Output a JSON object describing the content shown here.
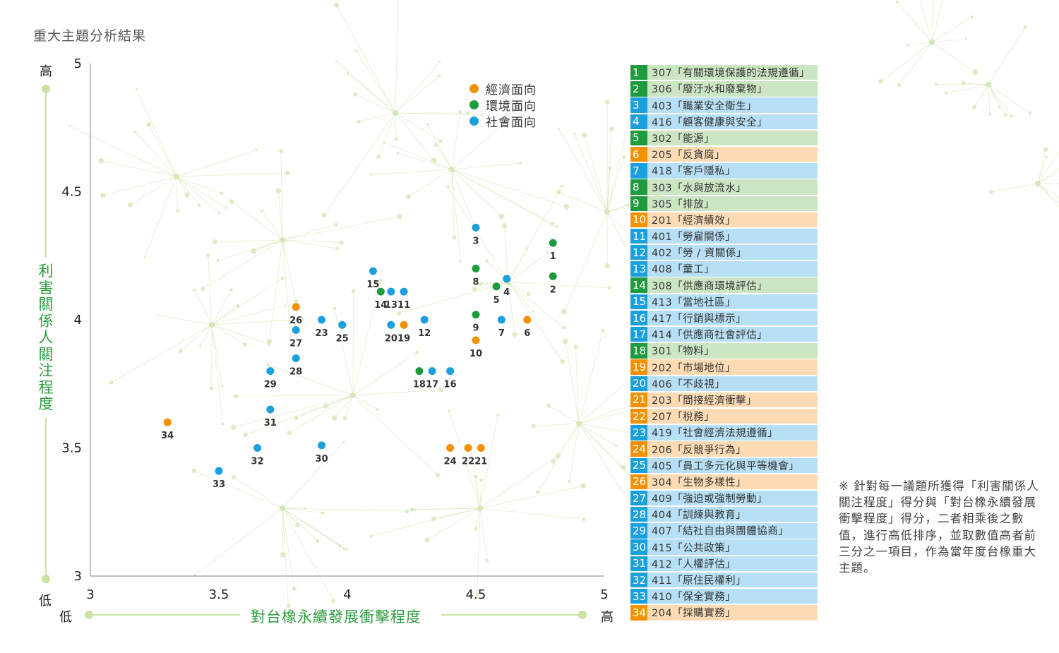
{
  "page_title": "重大主題分析結果",
  "axis_words": {
    "y_high": "高",
    "y_low": "低",
    "x_low": "低",
    "x_high": "高"
  },
  "colors": {
    "economic": "#f39200",
    "environmental": "#1e9b3c",
    "social": "#1aa0dc",
    "economic_row": "#fddcb5",
    "environmental_row": "#cce6c4",
    "social_row": "#b7dff5",
    "axis_title": "#2e9e3e",
    "guide": "#c9e3a3",
    "background_network": "#d6e8b8"
  },
  "legend": [
    {
      "label": "經濟面向",
      "category": "economic"
    },
    {
      "label": "環境面向",
      "category": "environmental"
    },
    {
      "label": "社會面向",
      "category": "social"
    }
  ],
  "chart_data": {
    "type": "scatter",
    "xlabel": "對台橡永續發展衝擊程度",
    "ylabel": "利害關係人關注程度",
    "xlim": [
      3,
      5
    ],
    "ylim": [
      3,
      5
    ],
    "x_ticks": [
      "3",
      "3.5",
      "4",
      "4.5",
      "5"
    ],
    "y_ticks": [
      "3",
      "3.5",
      "4",
      "4.5",
      "5"
    ],
    "grid": false,
    "legend_position": "top-center",
    "points": [
      {
        "id": "1",
        "x": 4.8,
        "y": 4.3,
        "category": "environmental"
      },
      {
        "id": "2",
        "x": 4.8,
        "y": 4.17,
        "category": "environmental"
      },
      {
        "id": "3",
        "x": 4.5,
        "y": 4.36,
        "category": "social"
      },
      {
        "id": "4",
        "x": 4.62,
        "y": 4.16,
        "category": "social"
      },
      {
        "id": "5",
        "x": 4.58,
        "y": 4.13,
        "category": "environmental"
      },
      {
        "id": "6",
        "x": 4.7,
        "y": 4.0,
        "category": "economic"
      },
      {
        "id": "7",
        "x": 4.6,
        "y": 4.0,
        "category": "social"
      },
      {
        "id": "8",
        "x": 4.5,
        "y": 4.2,
        "category": "environmental"
      },
      {
        "id": "9",
        "x": 4.5,
        "y": 4.02,
        "category": "environmental"
      },
      {
        "id": "10",
        "x": 4.5,
        "y": 3.92,
        "category": "economic"
      },
      {
        "id": "11",
        "x": 4.22,
        "y": 4.11,
        "category": "social"
      },
      {
        "id": "12",
        "x": 4.3,
        "y": 4.0,
        "category": "social"
      },
      {
        "id": "13",
        "x": 4.17,
        "y": 4.11,
        "category": "social"
      },
      {
        "id": "14",
        "x": 4.13,
        "y": 4.11,
        "category": "environmental"
      },
      {
        "id": "15",
        "x": 4.1,
        "y": 4.19,
        "category": "social"
      },
      {
        "id": "16",
        "x": 4.4,
        "y": 3.8,
        "category": "social"
      },
      {
        "id": "17",
        "x": 4.33,
        "y": 3.8,
        "category": "social"
      },
      {
        "id": "18",
        "x": 4.28,
        "y": 3.8,
        "category": "environmental"
      },
      {
        "id": "19",
        "x": 4.22,
        "y": 3.98,
        "category": "economic"
      },
      {
        "id": "20",
        "x": 4.17,
        "y": 3.98,
        "category": "social"
      },
      {
        "id": "21",
        "x": 4.52,
        "y": 3.5,
        "category": "economic"
      },
      {
        "id": "22",
        "x": 4.47,
        "y": 3.5,
        "category": "economic"
      },
      {
        "id": "23",
        "x": 3.9,
        "y": 4.0,
        "category": "social"
      },
      {
        "id": "24",
        "x": 4.4,
        "y": 3.5,
        "category": "economic"
      },
      {
        "id": "25",
        "x": 3.98,
        "y": 3.98,
        "category": "social"
      },
      {
        "id": "26",
        "x": 3.8,
        "y": 4.05,
        "category": "economic"
      },
      {
        "id": "27",
        "x": 3.8,
        "y": 3.96,
        "category": "social"
      },
      {
        "id": "28",
        "x": 3.8,
        "y": 3.85,
        "category": "social"
      },
      {
        "id": "29",
        "x": 3.7,
        "y": 3.8,
        "category": "social"
      },
      {
        "id": "30",
        "x": 3.9,
        "y": 3.51,
        "category": "social"
      },
      {
        "id": "31",
        "x": 3.7,
        "y": 3.65,
        "category": "social"
      },
      {
        "id": "32",
        "x": 3.65,
        "y": 3.5,
        "category": "social"
      },
      {
        "id": "33",
        "x": 3.5,
        "y": 3.41,
        "category": "social"
      },
      {
        "id": "34",
        "x": 3.3,
        "y": 3.6,
        "category": "economic"
      }
    ]
  },
  "topics": [
    {
      "num": "1",
      "text": "307「有關環境保護的法規遵循」",
      "category": "environmental"
    },
    {
      "num": "2",
      "text": "306「廢汙水和廢棄物」",
      "category": "environmental"
    },
    {
      "num": "3",
      "text": "403「職業安全衛生」",
      "category": "social"
    },
    {
      "num": "4",
      "text": "416「顧客健康與安全」",
      "category": "social"
    },
    {
      "num": "5",
      "text": "302「能源」",
      "category": "environmental"
    },
    {
      "num": "6",
      "text": "205「反貪腐」",
      "category": "economic"
    },
    {
      "num": "7",
      "text": "418「客戶隱私」",
      "category": "social"
    },
    {
      "num": "8",
      "text": "303「水與放流水」",
      "category": "environmental"
    },
    {
      "num": "9",
      "text": "305「排放」",
      "category": "environmental"
    },
    {
      "num": "10",
      "text": "201「經濟績效」",
      "category": "economic"
    },
    {
      "num": "11",
      "text": "401「勞雇關係」",
      "category": "social"
    },
    {
      "num": "12",
      "text": "402「勞 / 資關係」",
      "category": "social"
    },
    {
      "num": "13",
      "text": "408「童工」",
      "category": "social"
    },
    {
      "num": "14",
      "text": "308「供應商環境評估」",
      "category": "environmental"
    },
    {
      "num": "15",
      "text": "413「當地社區」",
      "category": "social"
    },
    {
      "num": "16",
      "text": "417「行銷與標示」",
      "category": "social"
    },
    {
      "num": "17",
      "text": "414「供應商社會評估」",
      "category": "social"
    },
    {
      "num": "18",
      "text": "301「物料」",
      "category": "environmental"
    },
    {
      "num": "19",
      "text": "202「市場地位」",
      "category": "economic"
    },
    {
      "num": "20",
      "text": "406「不歧視」",
      "category": "social"
    },
    {
      "num": "21",
      "text": "203「間接經濟衝擊」",
      "category": "economic"
    },
    {
      "num": "22",
      "text": "207「稅務」",
      "category": "economic"
    },
    {
      "num": "23",
      "text": "419「社會經濟法規遵循」",
      "category": "social"
    },
    {
      "num": "24",
      "text": "206「反競爭行為」",
      "category": "economic"
    },
    {
      "num": "25",
      "text": "405「員工多元化與平等機會」",
      "category": "social"
    },
    {
      "num": "26",
      "text": "304「生物多樣性」",
      "category": "economic"
    },
    {
      "num": "27",
      "text": "409「強迫或強制勞動」",
      "category": "social"
    },
    {
      "num": "28",
      "text": "404「訓練與教育」",
      "category": "social"
    },
    {
      "num": "29",
      "text": "407「結社自由與團體協商」",
      "category": "social"
    },
    {
      "num": "30",
      "text": "415「公共政策」",
      "category": "social"
    },
    {
      "num": "31",
      "text": "412「人權評估」",
      "category": "social"
    },
    {
      "num": "32",
      "text": "411「原住民權利」",
      "category": "social"
    },
    {
      "num": "33",
      "text": "410「保全實務」",
      "category": "social"
    },
    {
      "num": "34",
      "text": "204「採購實務」",
      "category": "economic"
    }
  ],
  "footnote": "※ 針對每一議題所獲得「利害關係人關注程度」得分與「對台橡永續發展衝擊程度」得分，二者相乘後之數值，進行高低排序，並取數值高者前三分之一項目，作為當年度台橡重大主題。"
}
